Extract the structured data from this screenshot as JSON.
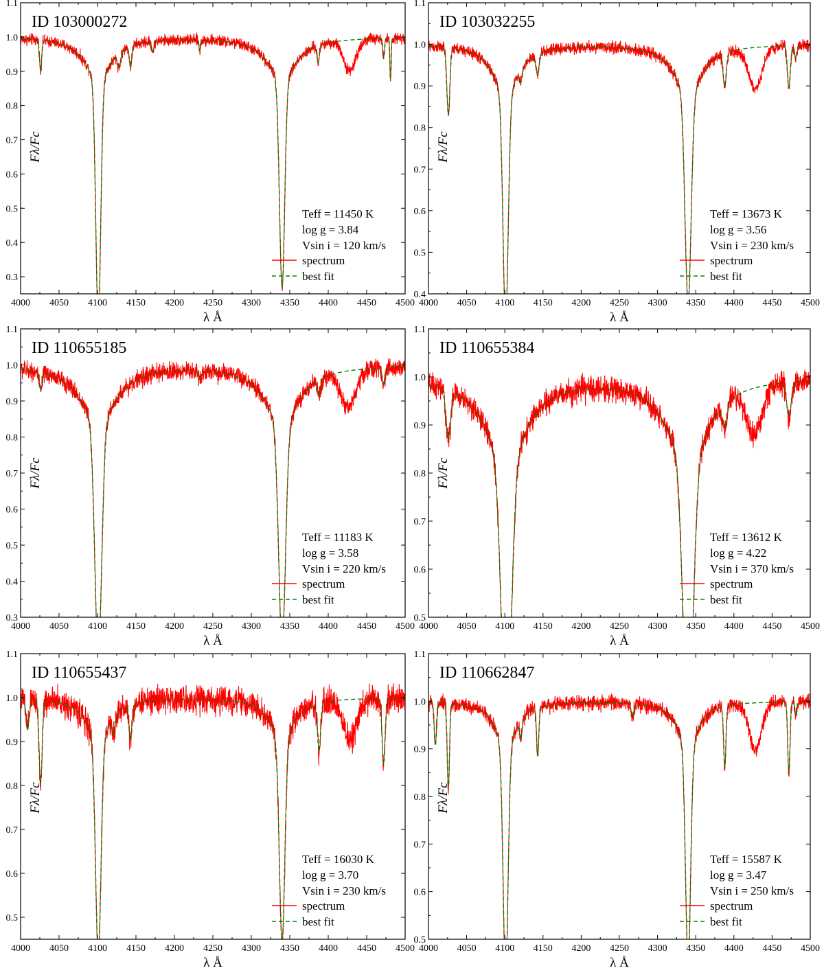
{
  "figure": {
    "x_axis_label": "λ Å",
    "y_axis_label": "Fλ/Fc",
    "legend": {
      "spectrum": "spectrum",
      "best_fit": "best fit"
    },
    "colors": {
      "spectrum": "#ff0000",
      "best_fit": "#008000",
      "axes": "#000000"
    }
  },
  "chart_data": [
    {
      "type": "line",
      "id_label": "ID 103000272",
      "annotations": [
        "Teff = 11450 K",
        "log g = 3.84",
        "Vsin i = 120 km/s"
      ],
      "xlabel": "λ Å",
      "ylabel": "Fλ/Fc",
      "xlim": [
        4000,
        4500
      ],
      "ylim": [
        0.25,
        1.1
      ],
      "xticks": [
        4000,
        4050,
        4100,
        4150,
        4200,
        4250,
        4300,
        4350,
        4400,
        4450,
        4500
      ],
      "yticks": [
        0.3,
        0.4,
        0.5,
        0.6,
        0.7,
        0.8,
        0.9,
        1.0,
        1.1
      ],
      "legend_position": "lower-right",
      "noise": 0.012,
      "series": [
        {
          "name": "spectrum",
          "style": "solid",
          "color": "#ff0000"
        },
        {
          "name": "best fit",
          "style": "dashed",
          "color": "#008000"
        }
      ],
      "lines": [
        {
          "center": 4101,
          "depth": 0.71,
          "width": 3.2,
          "wing": 0.12,
          "wingWidth": 22
        },
        {
          "center": 4340,
          "depth": 0.61,
          "width": 3.4,
          "wing": 0.12,
          "wingWidth": 24
        },
        {
          "center": 4026,
          "depth": 0.09,
          "width": 1.3
        },
        {
          "center": 4128,
          "depth": 0.04,
          "width": 2
        },
        {
          "center": 4143,
          "depth": 0.06,
          "width": 1.5
        },
        {
          "center": 4172,
          "depth": 0.03,
          "width": 1.5
        },
        {
          "center": 4233,
          "depth": 0.03,
          "width": 1
        },
        {
          "center": 4387,
          "depth": 0.05,
          "width": 1.5
        },
        {
          "center": 4472,
          "depth": 0.06,
          "width": 1.2
        },
        {
          "center": 4481,
          "depth": 0.12,
          "width": 0.8
        }
      ],
      "spectrum_only_lines": [
        {
          "center": 4428,
          "depth": 0.09,
          "width": 8
        }
      ]
    },
    {
      "type": "line",
      "id_label": "ID 103032255",
      "annotations": [
        "Teff = 13673 K",
        "log g = 3.56",
        "Vsin i = 230 km/s"
      ],
      "xlabel": "λ Å",
      "ylabel": "Fλ/Fc",
      "xlim": [
        4000,
        4500
      ],
      "ylim": [
        0.4,
        1.1
      ],
      "xticks": [
        4000,
        4050,
        4100,
        4150,
        4200,
        4250,
        4300,
        4350,
        4400,
        4450,
        4500
      ],
      "yticks": [
        0.4,
        0.5,
        0.6,
        0.7,
        0.8,
        0.9,
        1.0,
        1.1
      ],
      "legend_position": "lower-right",
      "noise": 0.01,
      "series": [
        {
          "name": "spectrum",
          "style": "solid",
          "color": "#ff0000"
        },
        {
          "name": "best fit",
          "style": "dashed",
          "color": "#008000"
        }
      ],
      "lines": [
        {
          "center": 4101,
          "depth": 0.55,
          "width": 3.4,
          "wing": 0.12,
          "wingWidth": 20
        },
        {
          "center": 4340,
          "depth": 0.5,
          "width": 4,
          "wing": 0.12,
          "wingWidth": 22
        },
        {
          "center": 4026,
          "depth": 0.16,
          "width": 2
        },
        {
          "center": 4121,
          "depth": 0.03,
          "width": 2
        },
        {
          "center": 4143,
          "depth": 0.05,
          "width": 2
        },
        {
          "center": 4388,
          "depth": 0.08,
          "width": 2
        },
        {
          "center": 4472,
          "depth": 0.1,
          "width": 2
        },
        {
          "center": 4481,
          "depth": 0.03,
          "width": 1.5
        }
      ],
      "spectrum_only_lines": [
        {
          "center": 4428,
          "depth": 0.1,
          "width": 9
        }
      ]
    },
    {
      "type": "line",
      "id_label": "ID 110655185",
      "annotations": [
        "Teff = 11183 K",
        "log g = 3.58",
        "Vsin i = 220 km/s"
      ],
      "xlabel": "λ Å",
      "ylabel": "Fλ/Fc",
      "xlim": [
        4000,
        4500
      ],
      "ylim": [
        0.3,
        1.1
      ],
      "xticks": [
        4000,
        4050,
        4100,
        4150,
        4200,
        4250,
        4300,
        4350,
        4400,
        4450,
        4500
      ],
      "yticks": [
        0.3,
        0.4,
        0.5,
        0.6,
        0.7,
        0.8,
        0.9,
        1.0,
        1.1
      ],
      "legend_position": "lower-right",
      "noise": 0.018,
      "series": [
        {
          "name": "spectrum",
          "style": "solid",
          "color": "#ff0000"
        },
        {
          "name": "best fit",
          "style": "dashed",
          "color": "#008000"
        }
      ],
      "lines": [
        {
          "center": 4101,
          "depth": 0.64,
          "width": 4.5,
          "wing": 0.16,
          "wingWidth": 28
        },
        {
          "center": 4340,
          "depth": 0.61,
          "width": 4.5,
          "wing": 0.16,
          "wingWidth": 28
        },
        {
          "center": 4026,
          "depth": 0.05,
          "width": 2
        },
        {
          "center": 4233,
          "depth": 0.02,
          "width": 2
        },
        {
          "center": 4388,
          "depth": 0.04,
          "width": 2
        },
        {
          "center": 4472,
          "depth": 0.05,
          "width": 2
        }
      ],
      "spectrum_only_lines": [
        {
          "center": 4426,
          "depth": 0.1,
          "width": 10
        }
      ]
    },
    {
      "type": "line",
      "id_label": "ID 110655384",
      "annotations": [
        "Teff = 13612 K",
        "log g = 4.22",
        "Vsin i = 370 km/s"
      ],
      "xlabel": "λ Å",
      "ylabel": "Fλ/Fc",
      "xlim": [
        4000,
        4500
      ],
      "ylim": [
        0.5,
        1.1
      ],
      "xticks": [
        4000,
        4050,
        4100,
        4150,
        4200,
        4250,
        4300,
        4350,
        4400,
        4450,
        4500
      ],
      "yticks": [
        0.5,
        0.6,
        0.7,
        0.8,
        0.9,
        1.0,
        1.1
      ],
      "legend_position": "lower-right",
      "noise": 0.018,
      "series": [
        {
          "name": "spectrum",
          "style": "solid",
          "color": "#ff0000"
        },
        {
          "name": "best fit",
          "style": "dashed",
          "color": "#008000"
        }
      ],
      "lines": [
        {
          "center": 4102,
          "depth": 0.55,
          "width": 6.5,
          "wing": 0.18,
          "wingWidth": 32
        },
        {
          "center": 4340,
          "depth": 0.55,
          "width": 6.5,
          "wing": 0.18,
          "wingWidth": 32
        },
        {
          "center": 4026,
          "depth": 0.1,
          "width": 3
        },
        {
          "center": 4388,
          "depth": 0.05,
          "width": 3
        },
        {
          "center": 4472,
          "depth": 0.07,
          "width": 3
        }
      ],
      "spectrum_only_lines": [
        {
          "center": 4427,
          "depth": 0.1,
          "width": 10
        }
      ]
    },
    {
      "type": "line",
      "id_label": "ID 110655437",
      "annotations": [
        "Teff = 16030 K",
        "log g = 3.70",
        "Vsin i = 230 km/s"
      ],
      "xlabel": "λ Å",
      "ylabel": "Fλ/Fc",
      "xlim": [
        4000,
        4500
      ],
      "ylim": [
        0.45,
        1.1
      ],
      "xticks": [
        4000,
        4050,
        4100,
        4150,
        4200,
        4250,
        4300,
        4350,
        4400,
        4450,
        4500
      ],
      "yticks": [
        0.5,
        0.6,
        0.7,
        0.8,
        0.9,
        1.0,
        1.1
      ],
      "legend_position": "lower-right",
      "noise": 0.022,
      "series": [
        {
          "name": "spectrum",
          "style": "solid",
          "color": "#ff0000"
        },
        {
          "name": "best fit",
          "style": "dashed",
          "color": "#008000"
        }
      ],
      "lines": [
        {
          "center": 4101,
          "depth": 0.49,
          "width": 3.5,
          "wing": 0.1,
          "wingWidth": 18
        },
        {
          "center": 4340,
          "depth": 0.46,
          "width": 3.5,
          "wing": 0.1,
          "wingWidth": 18
        },
        {
          "center": 4009,
          "depth": 0.07,
          "width": 2
        },
        {
          "center": 4026,
          "depth": 0.19,
          "width": 2
        },
        {
          "center": 4121,
          "depth": 0.04,
          "width": 2
        },
        {
          "center": 4143,
          "depth": 0.08,
          "width": 2
        },
        {
          "center": 4388,
          "depth": 0.11,
          "width": 2
        },
        {
          "center": 4472,
          "depth": 0.15,
          "width": 2
        }
      ],
      "spectrum_only_lines": [
        {
          "center": 4428,
          "depth": 0.09,
          "width": 9
        }
      ]
    },
    {
      "type": "line",
      "id_label": "ID 110662847",
      "annotations": [
        "Teff = 15587 K",
        "log g = 3.47",
        "Vsin i = 250 km/s"
      ],
      "xlabel": "λ Å",
      "ylabel": "Fλ/Fc",
      "xlim": [
        4000,
        4500
      ],
      "ylim": [
        0.5,
        1.1
      ],
      "xticks": [
        4000,
        4050,
        4100,
        4150,
        4200,
        4250,
        4300,
        4350,
        4400,
        4450,
        4500
      ],
      "yticks": [
        0.5,
        0.6,
        0.7,
        0.8,
        0.9,
        1.0,
        1.1
      ],
      "legend_position": "lower-right",
      "noise": 0.011,
      "series": [
        {
          "name": "spectrum",
          "style": "solid",
          "color": "#ff0000"
        },
        {
          "name": "best fit",
          "style": "dashed",
          "color": "#008000"
        }
      ],
      "lines": [
        {
          "center": 4101,
          "depth": 0.48,
          "width": 3.2,
          "wing": 0.1,
          "wingWidth": 16
        },
        {
          "center": 4340,
          "depth": 0.45,
          "width": 3.3,
          "wing": 0.1,
          "wingWidth": 16
        },
        {
          "center": 4009,
          "depth": 0.09,
          "width": 1.5
        },
        {
          "center": 4026,
          "depth": 0.18,
          "width": 1.5
        },
        {
          "center": 4121,
          "depth": 0.04,
          "width": 1.5
        },
        {
          "center": 4143,
          "depth": 0.1,
          "width": 1.5
        },
        {
          "center": 4267,
          "depth": 0.03,
          "width": 1.5
        },
        {
          "center": 4388,
          "depth": 0.13,
          "width": 1.5
        },
        {
          "center": 4472,
          "depth": 0.15,
          "width": 1.5
        },
        {
          "center": 4481,
          "depth": 0.03,
          "width": 1.2
        }
      ],
      "spectrum_only_lines": [
        {
          "center": 4428,
          "depth": 0.1,
          "width": 8
        }
      ]
    }
  ]
}
